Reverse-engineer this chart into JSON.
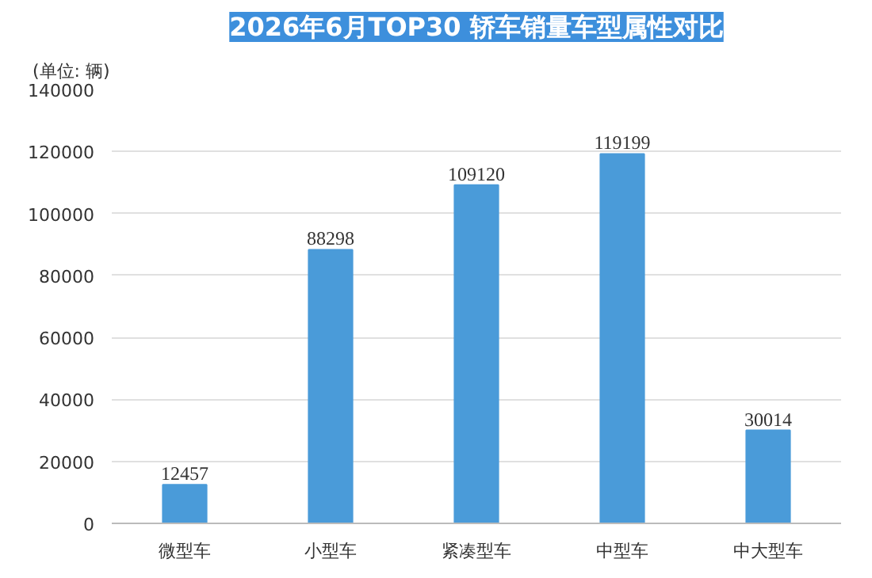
{
  "chart_data": {
    "type": "bar",
    "title": "2026年6月TOP30 轿车销量车型属性对比",
    "ylabel": "(单位: 辆)",
    "categories": [
      "微型车",
      "小型车",
      "紧凑型车",
      "中型车",
      "中大型车"
    ],
    "values": [
      12457,
      88298,
      109120,
      119199,
      30014
    ],
    "color": "#4a9bd9",
    "ylim": [
      0,
      140000
    ],
    "yticks": [
      0,
      20000,
      40000,
      60000,
      80000,
      100000,
      120000,
      140000
    ],
    "grid": "y",
    "data_labels": true
  }
}
